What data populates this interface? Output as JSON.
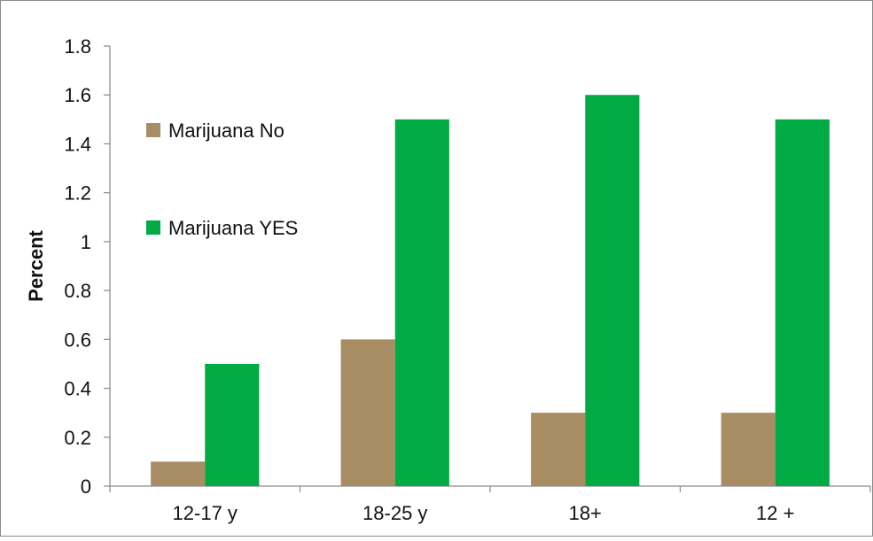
{
  "chart_data": {
    "type": "bar",
    "title": "",
    "xlabel": "",
    "ylabel": "Percent",
    "ylim": [
      0,
      1.8
    ],
    "yticks": [
      "0",
      "0.2",
      "0.4",
      "0.6",
      "0.8",
      "1",
      "1.2",
      "1.4",
      "1.6",
      "1.8"
    ],
    "categories": [
      "12-17 y",
      "18-25 y",
      "18+",
      "12 +"
    ],
    "series": [
      {
        "name": "Marijuana No",
        "color": "#a88c63",
        "values": [
          0.1,
          0.6,
          0.3,
          0.3
        ]
      },
      {
        "name": "Marijuana YES",
        "color": "#00aa44",
        "values": [
          0.5,
          1.5,
          1.6,
          1.5
        ]
      }
    ],
    "legend_position": "upper-left",
    "grid": false
  }
}
